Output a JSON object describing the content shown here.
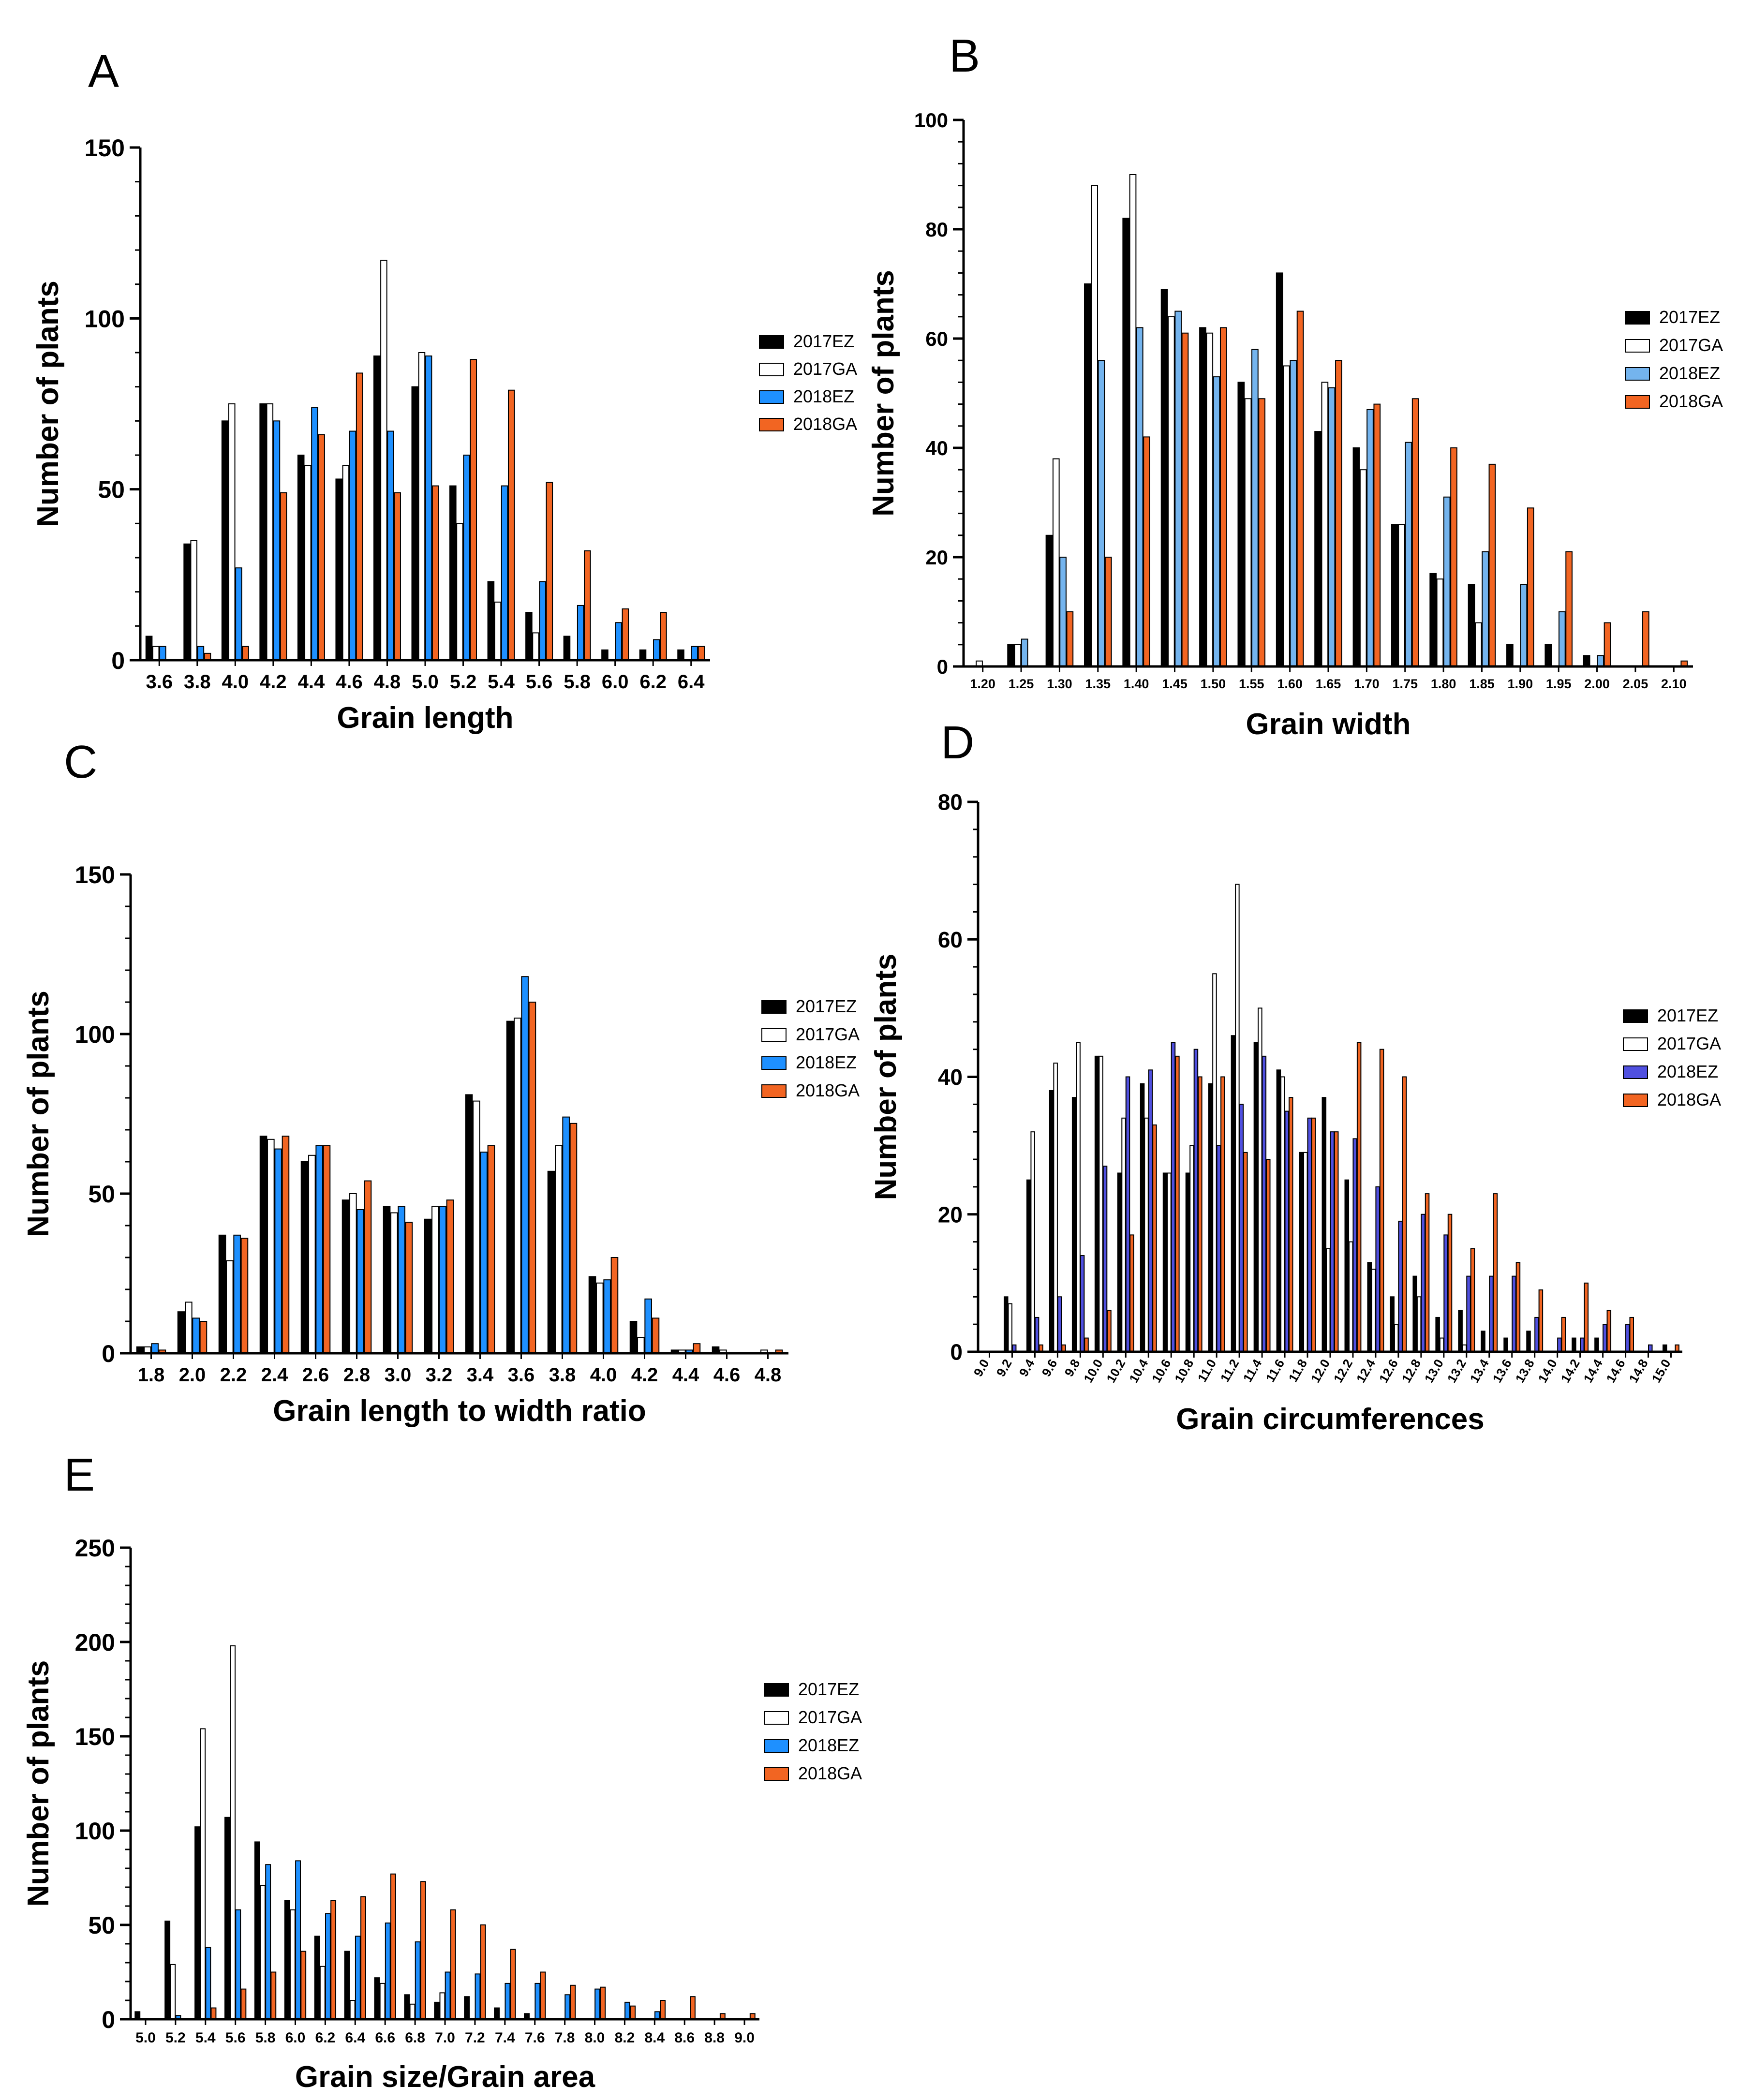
{
  "colors": {
    "2017EZ": "#000000",
    "2017GA": "#ffffff",
    "2018EZ": "#1e90ff",
    "2018GA": "#f26522",
    "2018EZ_light": "#74b4ee",
    "2018EZ_purple": "#5050e0"
  },
  "chart_data": [
    {
      "panel": "A",
      "type": "bar",
      "title": "",
      "xlabel": "Grain length",
      "ylabel": "Number of plants",
      "ylim": [
        0,
        150
      ],
      "yticks": [
        "0",
        "50",
        "100",
        "150"
      ],
      "categories": [
        "3.6",
        "3.8",
        "4.0",
        "4.2",
        "4.4",
        "4.6",
        "4.8",
        "5.0",
        "5.2",
        "5.4",
        "5.6",
        "5.8",
        "6.0",
        "6.2",
        "6.4"
      ],
      "legend": [
        "2017EZ",
        "2017GA",
        "2018EZ",
        "2018GA"
      ],
      "series": [
        {
          "name": "2017EZ",
          "values": [
            7,
            34,
            70,
            75,
            60,
            53,
            89,
            80,
            51,
            23,
            14,
            7,
            3,
            3,
            3
          ]
        },
        {
          "name": "2017GA",
          "values": [
            4,
            35,
            75,
            75,
            57,
            57,
            117,
            90,
            40,
            17,
            8,
            0,
            0,
            0,
            0
          ]
        },
        {
          "name": "2018EZ",
          "values": [
            4,
            4,
            27,
            70,
            74,
            67,
            67,
            89,
            60,
            51,
            23,
            16,
            11,
            6,
            4
          ]
        },
        {
          "name": "2018GA",
          "values": [
            0,
            2,
            4,
            49,
            66,
            84,
            49,
            51,
            88,
            79,
            52,
            32,
            15,
            14,
            4
          ]
        }
      ]
    },
    {
      "panel": "B",
      "type": "bar",
      "title": "",
      "xlabel": "Grain width",
      "ylabel": "Number of plants",
      "ylim": [
        0,
        100
      ],
      "yticks": [
        "0",
        "20",
        "40",
        "60",
        "80",
        "100"
      ],
      "categories": [
        "1.20",
        "1.25",
        "1.30",
        "1.35",
        "1.40",
        "1.45",
        "1.50",
        "1.55",
        "1.60",
        "1.65",
        "1.70",
        "1.75",
        "1.80",
        "1.85",
        "1.90",
        "1.95",
        "2.00",
        "2.05",
        "2.10"
      ],
      "legend": [
        "2017EZ",
        "2017GA",
        "2018EZ",
        "2018GA"
      ],
      "series": [
        {
          "name": "2017EZ",
          "values": [
            0,
            4,
            24,
            70,
            82,
            69,
            62,
            52,
            72,
            43,
            40,
            26,
            17,
            15,
            4,
            4,
            2,
            0,
            0
          ]
        },
        {
          "name": "2017GA",
          "values": [
            1,
            4,
            38,
            88,
            90,
            64,
            61,
            49,
            55,
            52,
            36,
            26,
            16,
            8,
            0,
            0,
            0,
            0,
            0
          ]
        },
        {
          "name": "2018EZ",
          "values": [
            0,
            5,
            20,
            56,
            62,
            65,
            53,
            58,
            56,
            51,
            47,
            41,
            31,
            21,
            15,
            10,
            2,
            0,
            0
          ]
        },
        {
          "name": "2018GA",
          "values": [
            0,
            0,
            10,
            20,
            42,
            61,
            62,
            49,
            65,
            56,
            48,
            49,
            40,
            37,
            29,
            21,
            8,
            10,
            1
          ]
        }
      ]
    },
    {
      "panel": "C",
      "type": "bar",
      "title": "",
      "xlabel": "Grain length to width ratio",
      "ylabel": "Number of plants",
      "ylim": [
        0,
        150
      ],
      "yticks": [
        "0",
        "50",
        "100",
        "150"
      ],
      "categories": [
        "1.8",
        "2.0",
        "2.2",
        "2.4",
        "2.6",
        "2.8",
        "3.0",
        "3.2",
        "3.4",
        "3.6",
        "3.8",
        "4.0",
        "4.2",
        "4.4",
        "4.6",
        "4.8"
      ],
      "legend": [
        "2017EZ",
        "2017GA",
        "2018EZ",
        "2018GA"
      ],
      "series": [
        {
          "name": "2017EZ",
          "values": [
            2,
            13,
            37,
            68,
            60,
            48,
            46,
            42,
            81,
            104,
            57,
            24,
            10,
            1,
            2,
            0
          ]
        },
        {
          "name": "2017GA",
          "values": [
            2,
            16,
            29,
            67,
            62,
            50,
            44,
            46,
            79,
            105,
            65,
            22,
            5,
            1,
            1,
            1
          ]
        },
        {
          "name": "2018EZ",
          "values": [
            3,
            11,
            37,
            64,
            65,
            45,
            46,
            46,
            63,
            118,
            74,
            23,
            17,
            1,
            0,
            0
          ]
        },
        {
          "name": "2018GA",
          "values": [
            1,
            10,
            36,
            68,
            65,
            54,
            41,
            48,
            65,
            110,
            72,
            30,
            11,
            3,
            0,
            1
          ]
        }
      ]
    },
    {
      "panel": "D",
      "type": "bar",
      "title": "",
      "xlabel": "Grain circumferences",
      "ylabel": "Number of plants",
      "ylim": [
        0,
        80
      ],
      "yticks": [
        "0",
        "20",
        "40",
        "60",
        "80"
      ],
      "categories": [
        "9.0",
        "9.2",
        "9.4",
        "9.6",
        "9.8",
        "10.0",
        "10.2",
        "10.4",
        "10.6",
        "10.8",
        "11.0",
        "11.2",
        "11.4",
        "11.6",
        "11.8",
        "12.0",
        "12.2",
        "12.4",
        "12.6",
        "12.8",
        "13.0",
        "13.2",
        "13.4",
        "13.6",
        "13.8",
        "14.0",
        "14.2",
        "14.4",
        "14.6",
        "14.8",
        "15.0"
      ],
      "legend": [
        "2017EZ",
        "2017GA",
        "2018EZ",
        "2018GA"
      ],
      "series": [
        {
          "name": "2017EZ",
          "values": [
            0,
            8,
            25,
            38,
            37,
            43,
            26,
            39,
            26,
            26,
            39,
            46,
            45,
            41,
            29,
            37,
            25,
            13,
            8,
            11,
            5,
            6,
            3,
            2,
            3,
            0,
            2,
            2,
            0,
            0,
            1
          ]
        },
        {
          "name": "2017GA",
          "values": [
            0,
            7,
            32,
            42,
            45,
            43,
            34,
            34,
            26,
            30,
            55,
            68,
            50,
            40,
            29,
            15,
            16,
            12,
            4,
            8,
            2,
            1,
            0,
            0,
            0,
            0,
            0,
            0,
            0,
            0,
            0
          ]
        },
        {
          "name": "2018EZ",
          "values": [
            0,
            1,
            5,
            8,
            14,
            27,
            40,
            41,
            45,
            44,
            30,
            36,
            43,
            35,
            34,
            32,
            31,
            24,
            19,
            20,
            17,
            11,
            11,
            11,
            5,
            2,
            2,
            4,
            4,
            1,
            0
          ]
        },
        {
          "name": "2018GA",
          "values": [
            0,
            0,
            1,
            1,
            2,
            6,
            17,
            33,
            43,
            40,
            40,
            29,
            28,
            37,
            34,
            32,
            45,
            44,
            40,
            23,
            20,
            15,
            23,
            13,
            9,
            5,
            10,
            6,
            5,
            0,
            1
          ]
        }
      ]
    },
    {
      "panel": "E",
      "type": "bar",
      "title": "",
      "xlabel": "Grain size/Grain area",
      "ylabel": "Number of plants",
      "ylim": [
        0,
        250
      ],
      "yticks": [
        "0",
        "50",
        "100",
        "150",
        "200",
        "250"
      ],
      "categories": [
        "5.0",
        "5.2",
        "5.4",
        "5.6",
        "5.8",
        "6.0",
        "6.2",
        "6.4",
        "6.6",
        "6.8",
        "7.0",
        "7.2",
        "7.4",
        "7.6",
        "7.8",
        "8.0",
        "8.2",
        "8.4",
        "8.6",
        "8.8",
        "9.0"
      ],
      "legend": [
        "2017EZ",
        "2017GA",
        "2018EZ",
        "2018GA"
      ],
      "series": [
        {
          "name": "2017EZ",
          "values": [
            4,
            52,
            102,
            107,
            94,
            63,
            44,
            36,
            22,
            13,
            9,
            12,
            6,
            3,
            0,
            0,
            0,
            0,
            0,
            0,
            0
          ]
        },
        {
          "name": "2017GA",
          "values": [
            0,
            29,
            154,
            198,
            71,
            58,
            28,
            10,
            19,
            8,
            14,
            0,
            0,
            0,
            0,
            0,
            0,
            0,
            0,
            0,
            0
          ]
        },
        {
          "name": "2018EZ",
          "values": [
            0,
            2,
            38,
            58,
            82,
            84,
            56,
            44,
            51,
            41,
            25,
            24,
            19,
            19,
            13,
            16,
            9,
            4,
            0,
            0,
            0
          ]
        },
        {
          "name": "2018GA",
          "values": [
            0,
            0,
            6,
            16,
            25,
            36,
            63,
            65,
            77,
            73,
            58,
            50,
            37,
            25,
            18,
            17,
            7,
            10,
            12,
            3,
            3
          ]
        }
      ]
    }
  ]
}
